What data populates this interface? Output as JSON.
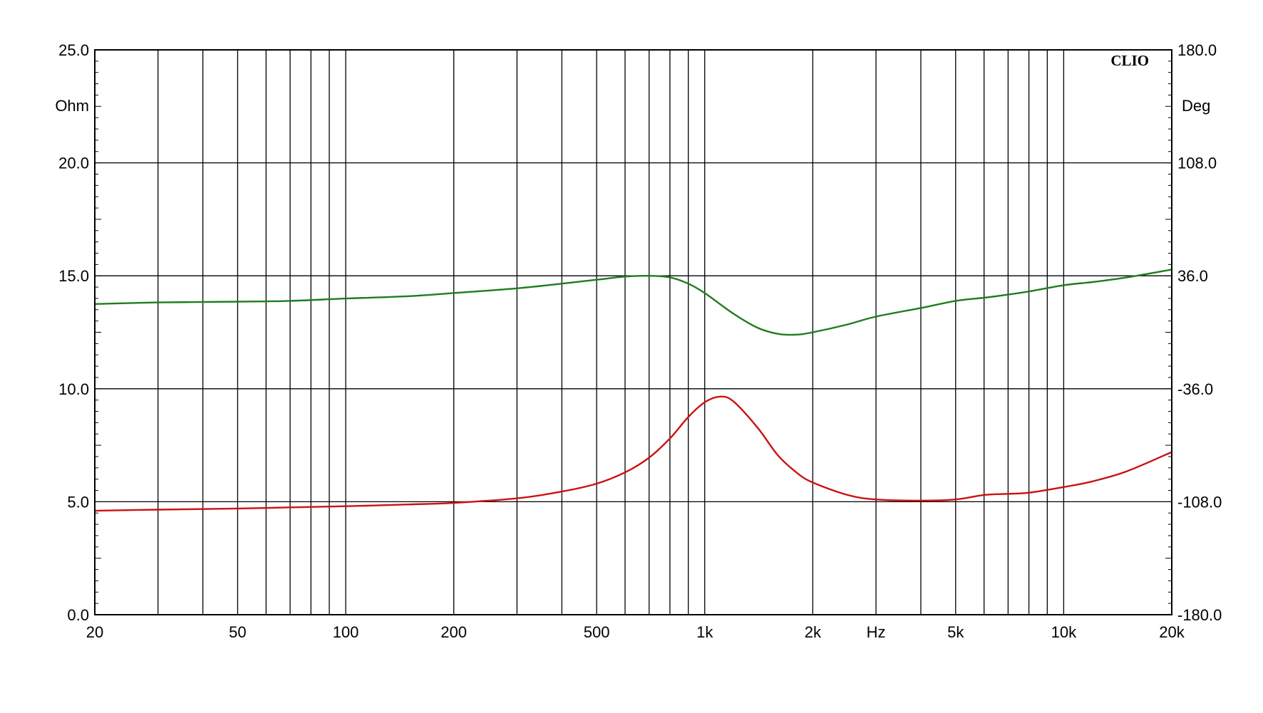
{
  "chart_data": {
    "type": "line",
    "brand": "CLIO",
    "x_unit": "Hz",
    "x_scale": "log",
    "xlim": [
      20,
      20000
    ],
    "x_tick_labels": [
      {
        "value": 20,
        "label": "20"
      },
      {
        "value": 50,
        "label": "50"
      },
      {
        "value": 100,
        "label": "100"
      },
      {
        "value": 200,
        "label": "200"
      },
      {
        "value": 500,
        "label": "500"
      },
      {
        "value": 1000,
        "label": "1k"
      },
      {
        "value": 2000,
        "label": "2k"
      },
      {
        "value": 5000,
        "label": "5k"
      },
      {
        "value": 10000,
        "label": "10k"
      },
      {
        "value": 20000,
        "label": "20k"
      }
    ],
    "left_axis": {
      "unit": "Ohm",
      "ylim": [
        0,
        25
      ],
      "ticks": [
        {
          "value": 0,
          "label": "0.0"
        },
        {
          "value": 5,
          "label": "5.0"
        },
        {
          "value": 10,
          "label": "10.0"
        },
        {
          "value": 15,
          "label": "15.0"
        },
        {
          "value": 20,
          "label": "20.0"
        },
        {
          "value": 25,
          "label": "25.0"
        }
      ]
    },
    "right_axis": {
      "unit": "Deg",
      "ylim": [
        -180,
        180
      ],
      "ticks": [
        {
          "value": -180,
          "label": "-180.0"
        },
        {
          "value": -108,
          "label": "-108.0"
        },
        {
          "value": -36,
          "label": "-36.0"
        },
        {
          "value": 36,
          "label": "36.0"
        },
        {
          "value": 108,
          "label": "108.0"
        },
        {
          "value": 180,
          "label": "180.0"
        }
      ]
    },
    "grid": true,
    "series": [
      {
        "color": "#cc1111",
        "axis": "left",
        "points": [
          [
            20,
            4.6
          ],
          [
            30,
            4.65
          ],
          [
            50,
            4.7
          ],
          [
            70,
            4.75
          ],
          [
            100,
            4.8
          ],
          [
            150,
            4.88
          ],
          [
            200,
            4.95
          ],
          [
            300,
            5.15
          ],
          [
            400,
            5.45
          ],
          [
            500,
            5.8
          ],
          [
            600,
            6.3
          ],
          [
            700,
            6.95
          ],
          [
            800,
            7.8
          ],
          [
            900,
            8.75
          ],
          [
            1000,
            9.4
          ],
          [
            1100,
            9.65
          ],
          [
            1200,
            9.45
          ],
          [
            1400,
            8.3
          ],
          [
            1600,
            7.05
          ],
          [
            1800,
            6.3
          ],
          [
            2000,
            5.85
          ],
          [
            2500,
            5.3
          ],
          [
            3000,
            5.1
          ],
          [
            4000,
            5.05
          ],
          [
            5000,
            5.1
          ],
          [
            6000,
            5.3
          ],
          [
            7000,
            5.35
          ],
          [
            8000,
            5.4
          ],
          [
            10000,
            5.65
          ],
          [
            12000,
            5.9
          ],
          [
            15000,
            6.35
          ],
          [
            20000,
            7.2
          ]
        ]
      },
      {
        "color": "#1e7d1e",
        "axis": "right",
        "points": [
          [
            20,
            18
          ],
          [
            30,
            19
          ],
          [
            50,
            19.5
          ],
          [
            70,
            20
          ],
          [
            100,
            21.5
          ],
          [
            150,
            23
          ],
          [
            200,
            25
          ],
          [
            300,
            28
          ],
          [
            400,
            31
          ],
          [
            500,
            33.5
          ],
          [
            600,
            35.5
          ],
          [
            700,
            36
          ],
          [
            800,
            35
          ],
          [
            900,
            31
          ],
          [
            1000,
            25
          ],
          [
            1200,
            12
          ],
          [
            1400,
            3
          ],
          [
            1600,
            -1
          ],
          [
            1800,
            -1.5
          ],
          [
            2000,
            0
          ],
          [
            2500,
            5
          ],
          [
            3000,
            10
          ],
          [
            4000,
            15.5
          ],
          [
            5000,
            20
          ],
          [
            6000,
            22
          ],
          [
            7000,
            24
          ],
          [
            8000,
            26
          ],
          [
            10000,
            30
          ],
          [
            12000,
            32
          ],
          [
            15000,
            35
          ],
          [
            20000,
            40
          ]
        ]
      }
    ]
  }
}
